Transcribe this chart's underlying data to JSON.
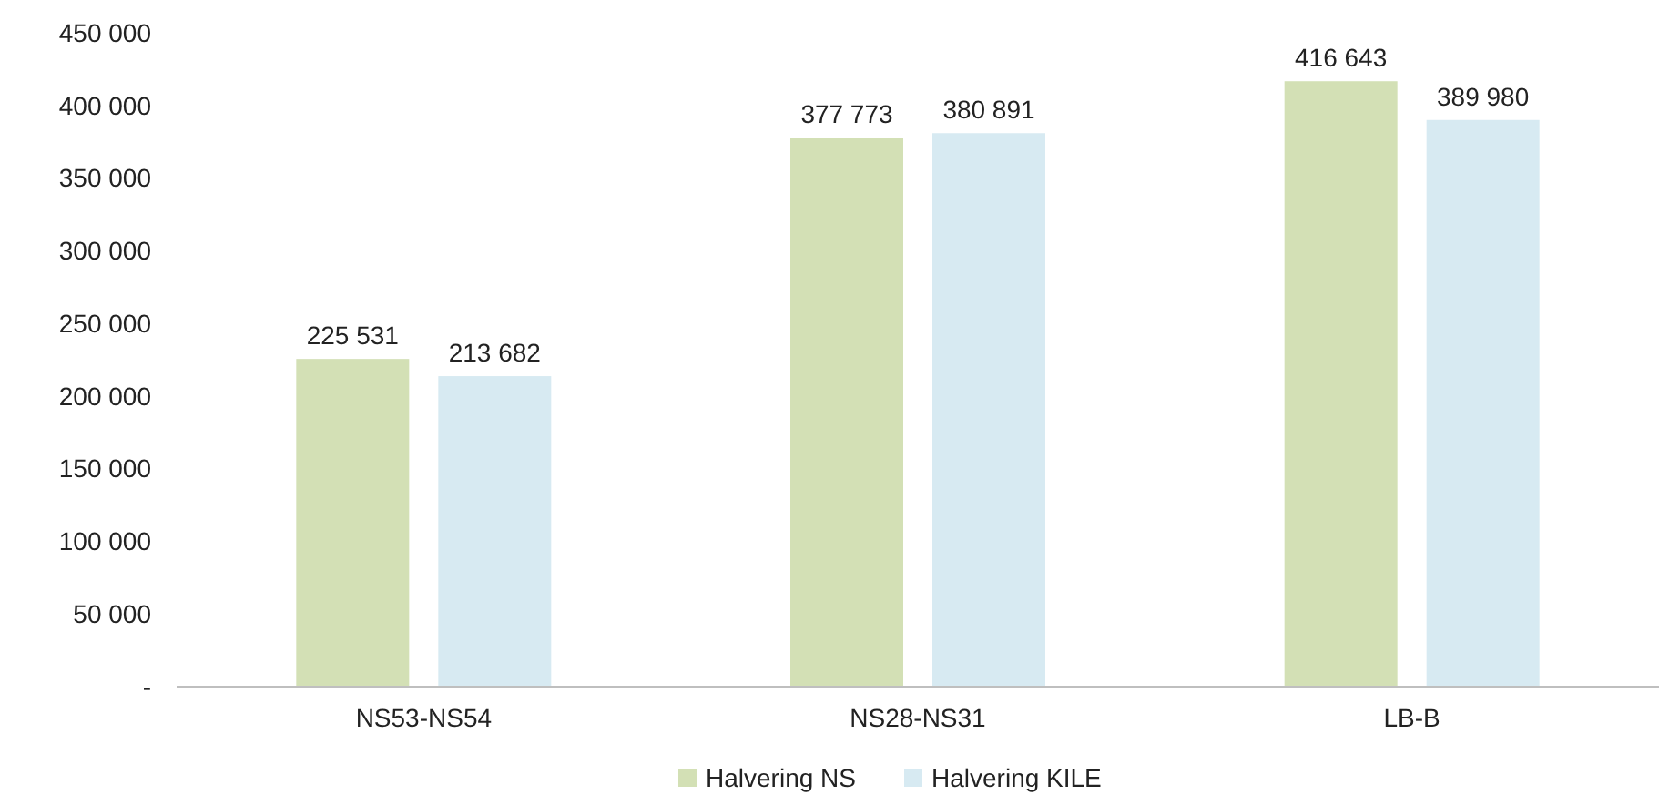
{
  "chart_data": {
    "type": "bar",
    "categories": [
      "NS53-NS54",
      "NS28-NS31",
      "LB-B"
    ],
    "series": [
      {
        "name": "Halvering NS",
        "color": "#d3e0b5",
        "values": [
          225531,
          377773,
          416643
        ]
      },
      {
        "name": "Halvering KILE",
        "color": "#d7eaf2",
        "values": [
          213682,
          380891,
          389980
        ]
      }
    ],
    "ylim": [
      0,
      450000
    ],
    "yticks": [
      {
        "value": 0,
        "label": "-"
      },
      {
        "value": 50000,
        "label": "50 000"
      },
      {
        "value": 100000,
        "label": "100 000"
      },
      {
        "value": 150000,
        "label": "150 000"
      },
      {
        "value": 200000,
        "label": "200 000"
      },
      {
        "value": 250000,
        "label": "250 000"
      },
      {
        "value": 300000,
        "label": "300 000"
      },
      {
        "value": 350000,
        "label": "350 000"
      },
      {
        "value": 400000,
        "label": "400 000"
      },
      {
        "value": 450000,
        "label": "450 000"
      }
    ],
    "data_labels": true,
    "legend": "bottom",
    "grid": false
  }
}
